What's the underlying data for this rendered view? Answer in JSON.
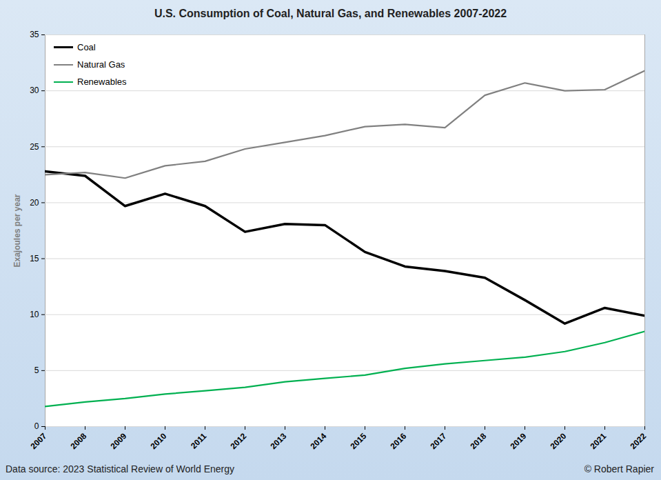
{
  "chart_data": {
    "type": "line",
    "title": "U.S. Consumption of Coal, Natural Gas, and Renewables 2007-2022",
    "y_label": "Exajoules per year",
    "source": "Data source: 2023 Statistical Review of World Energy",
    "credit": "© Robert Rapier",
    "x": [
      2007,
      2008,
      2009,
      2010,
      2011,
      2012,
      2013,
      2014,
      2015,
      2016,
      2017,
      2018,
      2019,
      2020,
      2021,
      2022
    ],
    "xlim": [
      2007,
      2022
    ],
    "xticks": [
      2007,
      2008,
      2009,
      2010,
      2011,
      2012,
      2013,
      2014,
      2015,
      2016,
      2017,
      2018,
      2019,
      2020,
      2021,
      2022
    ],
    "ylim": [
      0,
      35
    ],
    "yticks": [
      0,
      5,
      10,
      15,
      20,
      25,
      30,
      35
    ],
    "grid": true,
    "legend": "top-left",
    "series": [
      {
        "name": "Coal",
        "color": "#000000",
        "values": [
          22.8,
          22.4,
          19.7,
          20.8,
          19.7,
          17.4,
          18.1,
          18.0,
          15.6,
          14.3,
          13.9,
          13.3,
          11.3,
          9.2,
          10.6,
          9.9
        ]
      },
      {
        "name": "Natural Gas",
        "color": "#808080",
        "values": [
          22.5,
          22.7,
          22.2,
          23.3,
          23.7,
          24.8,
          25.4,
          26.0,
          26.8,
          27.0,
          26.7,
          29.6,
          30.7,
          30.0,
          30.1,
          31.8
        ]
      },
      {
        "name": "Renewables",
        "color": "#00b050",
        "values": [
          1.8,
          2.2,
          2.5,
          2.9,
          3.2,
          3.5,
          4.0,
          4.3,
          4.6,
          5.2,
          5.6,
          5.9,
          6.2,
          6.7,
          7.5,
          8.5
        ]
      }
    ]
  }
}
